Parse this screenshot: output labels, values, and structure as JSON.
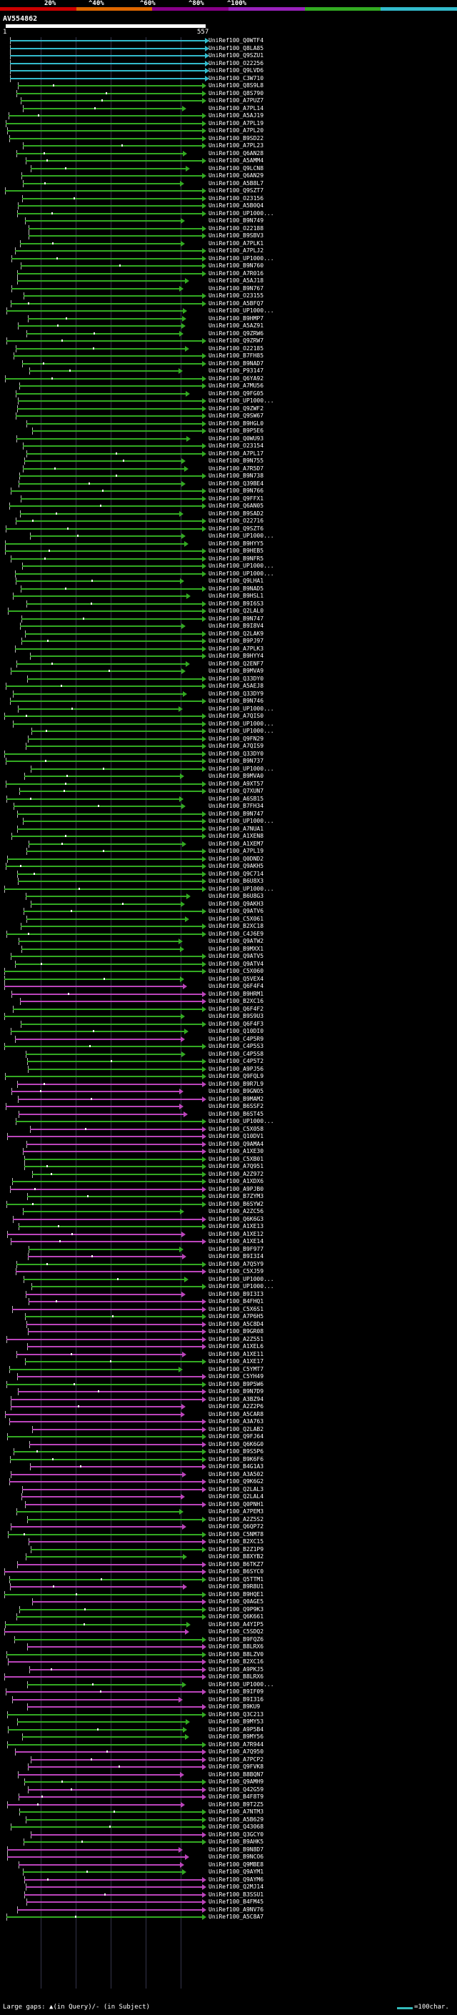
{
  "legend": {
    "segments": [
      {
        "label": "",
        "color": "#cc0000"
      },
      {
        "label": "20%",
        "color": "#dd6600"
      },
      {
        "label": "40%",
        "color": "#880088"
      },
      {
        "label": "60%",
        "color": "#9922bb"
      },
      {
        "label": "80%",
        "color": "#33aa22"
      },
      {
        "label": "100%",
        "color": "#33bbcc"
      }
    ],
    "labels": [
      "20%",
      "^40%",
      "^60%",
      "^80%",
      "^100%"
    ]
  },
  "query": {
    "name": "AV554862",
    "start": "1",
    "end": "557"
  },
  "colors": {
    "cyan": "#33bbcc",
    "green": "#33aa22",
    "magenta": "#bb44bb",
    "grid": "#34344a"
  },
  "hits": [
    "UniRef100_Q0WTF4",
    "UniRef100_Q8LA85",
    "UniRef100_Q9SZU1",
    "UniRef100_O22256",
    "UniRef100_Q9LVD6",
    "UniRef100_C3W710",
    "UniRef100_Q8S9L8",
    "UniRef100_Q8S790",
    "UniRef100_A7PUZ7",
    "UniRef100_A7PL14",
    "UniRef100_A5AJ19",
    "UniRef100_A7PL19",
    "UniRef100_A7PL20",
    "UniRef100_B9SD22",
    "UniRef100_A7PL23",
    "UniRef100_Q6AN28",
    "UniRef100_A5AMM4",
    "UniRef100_Q9LCN8",
    "UniRef100_Q6AN29",
    "UniRef100_A5B8L7",
    "UniRef100_Q9SZT7",
    "UniRef100_O23156",
    "UniRef100_A5B0Q4",
    "UniRef100_UP1000...",
    "UniRef100_B9N749",
    "UniRef100_O22188",
    "UniRef100_B9SBV3",
    "UniRef100_A7PLK1",
    "UniRef100_A7PLJ2",
    "UniRef100_UP1000...",
    "UniRef100_B9N760",
    "UniRef100_A7R016",
    "UniRef100_A5AJ18",
    "UniRef100_B9N767",
    "UniRef100_O23155",
    "UniRef100_A5BFQ7",
    "UniRef100_UP1000...",
    "UniRef100_B9HMP7",
    "UniRef100_A5AZ91",
    "UniRef100_Q9ZRW6",
    "UniRef100_Q9ZRW7",
    "UniRef100_O22185",
    "UniRef100_B7FH85",
    "UniRef100_B9NAD7",
    "UniRef100_P93147",
    "UniRef100_Q6YA92",
    "UniRef100_A7MU56",
    "UniRef100_Q9FG05",
    "UniRef100_UP1000...",
    "UniRef100_Q9ZWF2",
    "UniRef100_Q9SW67",
    "UniRef100_B9HGL0",
    "UniRef100_B9P5E6",
    "UniRef100_Q0WU93",
    "UniRef100_O23154",
    "UniRef100_A7PL17",
    "UniRef100_B9N755",
    "UniRef100_A7R5D7",
    "UniRef100_B9N738",
    "UniRef100_Q39BE4",
    "UniRef100_B9N766",
    "UniRef100_Q9FFX1",
    "UniRef100_Q6AN05",
    "UniRef100_B9SAD2",
    "UniRef100_O22716",
    "UniRef100_Q9SZT6",
    "UniRef100_UP1000...",
    "UniRef100_B9HYY5",
    "UniRef100_B9HEB5",
    "UniRef100_B9NFR5",
    "UniRef100_UP1000...",
    "UniRef100_UP1000...",
    "UniRef100_Q9LHA1",
    "UniRef100_B9NAD5",
    "UniRef100_B9HSL1",
    "UniRef100_B9I6S3",
    "UniRef100_Q2LAL0",
    "UniRef100_B9N747",
    "UniRef100_B9I8V4",
    "UniRef100_Q2LAK9",
    "UniRef100_B9PJ97",
    "UniRef100_A7PLK3",
    "UniRef100_B9HYY4",
    "UniRef100_Q2ENF7",
    "UniRef100_B9MVA9",
    "UniRef100_Q33DY0",
    "UniRef100_A5AEJ8",
    "UniRef100_Q33DY9",
    "UniRef100_B9N746",
    "UniRef100_UP1000...",
    "UniRef100_A7QIS0",
    "UniRef100_UP1000...",
    "UniRef100_UP1000...",
    "UniRef100_Q9FN29",
    "UniRef100_A7QIS9",
    "UniRef100_Q33DY0",
    "UniRef100_B9N737",
    "UniRef100_UP1000...",
    "UniRef100_B9MVA0",
    "UniRef100_A9XT57",
    "UniRef100_Q7XUN7",
    "UniRef100_A6SB15",
    "UniRef100_B7FH34",
    "UniRef100_B9N747",
    "UniRef100_UP1000...",
    "UniRef100_A7NUA1",
    "UniRef100_A1XEN8",
    "UniRef100_A1XEM7",
    "UniRef100_A7PL19",
    "UniRef100_Q0DND2",
    "UniRef100_Q9AKH5",
    "UniRef100_Q9C714",
    "UniRef100_B6U8X3",
    "UniRef100_UP1000...",
    "UniRef100_B6U8G3",
    "UniRef100_Q9AKH3",
    "UniRef100_Q9ATV6",
    "UniRef100_C5X061",
    "UniRef100_B2XC18",
    "UniRef100_C4J6E9",
    "UniRef100_Q9ATW2",
    "UniRef100_B9MXX1",
    "UniRef100_Q9ATV5",
    "UniRef100_Q9ATV4",
    "UniRef100_C5X060",
    "UniRef100_Q5VEX4",
    "UniRef100_Q6F4F4",
    "UniRef100_B9HRM1",
    "UniRef100_B2XC16",
    "UniRef100_Q6F4F2",
    "UniRef100_B9S9U3",
    "UniRef100_Q6F4F3",
    "UniRef100_Q10DI0",
    "UniRef100_C4P5R9",
    "UniRef100_C4P5S3",
    "UniRef100_C4P5S8",
    "UniRef100_C4P5T2",
    "UniRef100_A9PJ56",
    "UniRef100_Q9FQL9",
    "UniRef100_B9R7L9",
    "UniRef100_B9GNO5",
    "UniRef100_B9MAM2",
    "UniRef100_B6SSF2",
    "UniRef100_B6ST45",
    "UniRef100_UP1000...",
    "UniRef100_C5X058",
    "UniRef100_Q10DV1",
    "UniRef100_Q9AMA4",
    "UniRef100_A1XE30",
    "UniRef100_C5XB01",
    "UniRef100_A7Q951",
    "UniRef100_A2Z972",
    "UniRef100_A1XDX6",
    "UniRef100_A9PJB0",
    "UniRef100_B7ZYM3",
    "UniRef100_B6SYW2",
    "UniRef100_A2ZC56",
    "UniRef100_Q6K6G3",
    "UniRef100_A1XE13",
    "UniRef100_A1XE12",
    "UniRef100_A1XE14",
    "UniRef100_B9F977",
    "UniRef100_B9I3I4",
    "UniRef100_A7Q5Y9",
    "UniRef100_C5XJ59",
    "UniRef100_UP1000...",
    "UniRef100_UP1000...",
    "UniRef100_B9I3I3",
    "UniRef100_B4FHQ1",
    "UniRef100_C5X6S1",
    "UniRef100_A7P6H5",
    "UniRef100_A5C8D4",
    "UniRef100_B9GR08",
    "UniRef100_A2Z551",
    "UniRef100_A1XEL6",
    "UniRef100_A1XE11",
    "UniRef100_A1XE17",
    "UniRef100_C5YMT7",
    "UniRef100_C5YH49",
    "UniRef100_B9P5W6",
    "UniRef100_B9N7D9",
    "UniRef100_A3BZ94",
    "UniRef100_A2Z2P6",
    "UniRef100_A5CAR8",
    "UniRef100_A3A763",
    "UniRef100_Q2LAB2",
    "UniRef100_Q9FJ64",
    "UniRef100_Q6K6G0",
    "UniRef100_B9S5P6",
    "UniRef100_B9K6F6",
    "UniRef100_B4G1A3",
    "UniRef100_A3A502",
    "UniRef100_Q9K6G2",
    "UniRef100_Q2LAL3",
    "UniRef100_Q2LAL4",
    "UniRef100_Q0PNH1",
    "UniRef100_A7PEM3",
    "UniRef100_A2Z5S2",
    "UniRef100_Q6QP72",
    "UniRef100_C5NM78",
    "UniRef100_B2XC15",
    "UniRef100_B2Z1P9",
    "UniRef100_B8XYB2",
    "UniRef100_B6TKZ7",
    "UniRef100_B6SYC0",
    "UniRef100_Q5TTM1",
    "UniRef100_B9R8U1",
    "UniRef100_B9HQE1",
    "UniRef100_Q0AGE5",
    "UniRef100_Q9P9K3",
    "UniRef100_Q6K661",
    "UniRef100_A4YIP5",
    "UniRef100_C5SDQ2",
    "UniRef100_B9FQZ6",
    "UniRef100_B8LRX6",
    "UniRef100_B8LZV0",
    "UniRef100_B2XC16",
    "UniRef100_A9PKJ5",
    "UniRef100_B8LRX6",
    "UniRef100_UP1000...",
    "UniRef100_B9IF09",
    "UniRef100_B9I316",
    "UniRef100_B9KU9",
    "UniRef100_Q3C213",
    "UniRef100_B9MY53",
    "UniRef100_A9P5B4",
    "UniRef100_B9MY56",
    "UniRef100_A7R944",
    "UniRef100_A7Q950",
    "UniRef100_A7PCP2",
    "UniRef100_Q9FVK8",
    "UniRef100_B8BQN7",
    "UniRef100_Q9AMH9",
    "UniRef100_Q42G59",
    "UniRef100_B4F8T9",
    "UniRef100_B9T2Z5",
    "UniRef100_A7NTM3",
    "UniRef100_A5B629",
    "UniRef100_Q43068",
    "UniRef100_Q3GCY0",
    "UniRef100_B9AHK5",
    "UniRef100_B9N8D7",
    "UniRef100_B9NCO6",
    "UniRef100_Q9MBE8",
    "UniRef100_Q9AYM1",
    "UniRef100_Q9AYM6",
    "UniRef100_Q2MJ14",
    "UniRef100_B3SSU1",
    "UniRef100_B4FM45",
    "UniRef100_A9NV76",
    "UniRef100_A5C8A7"
  ],
  "footer": {
    "text": "Large gaps: ▲(in Query)/- (in Subject)",
    "scale": "=100char."
  }
}
